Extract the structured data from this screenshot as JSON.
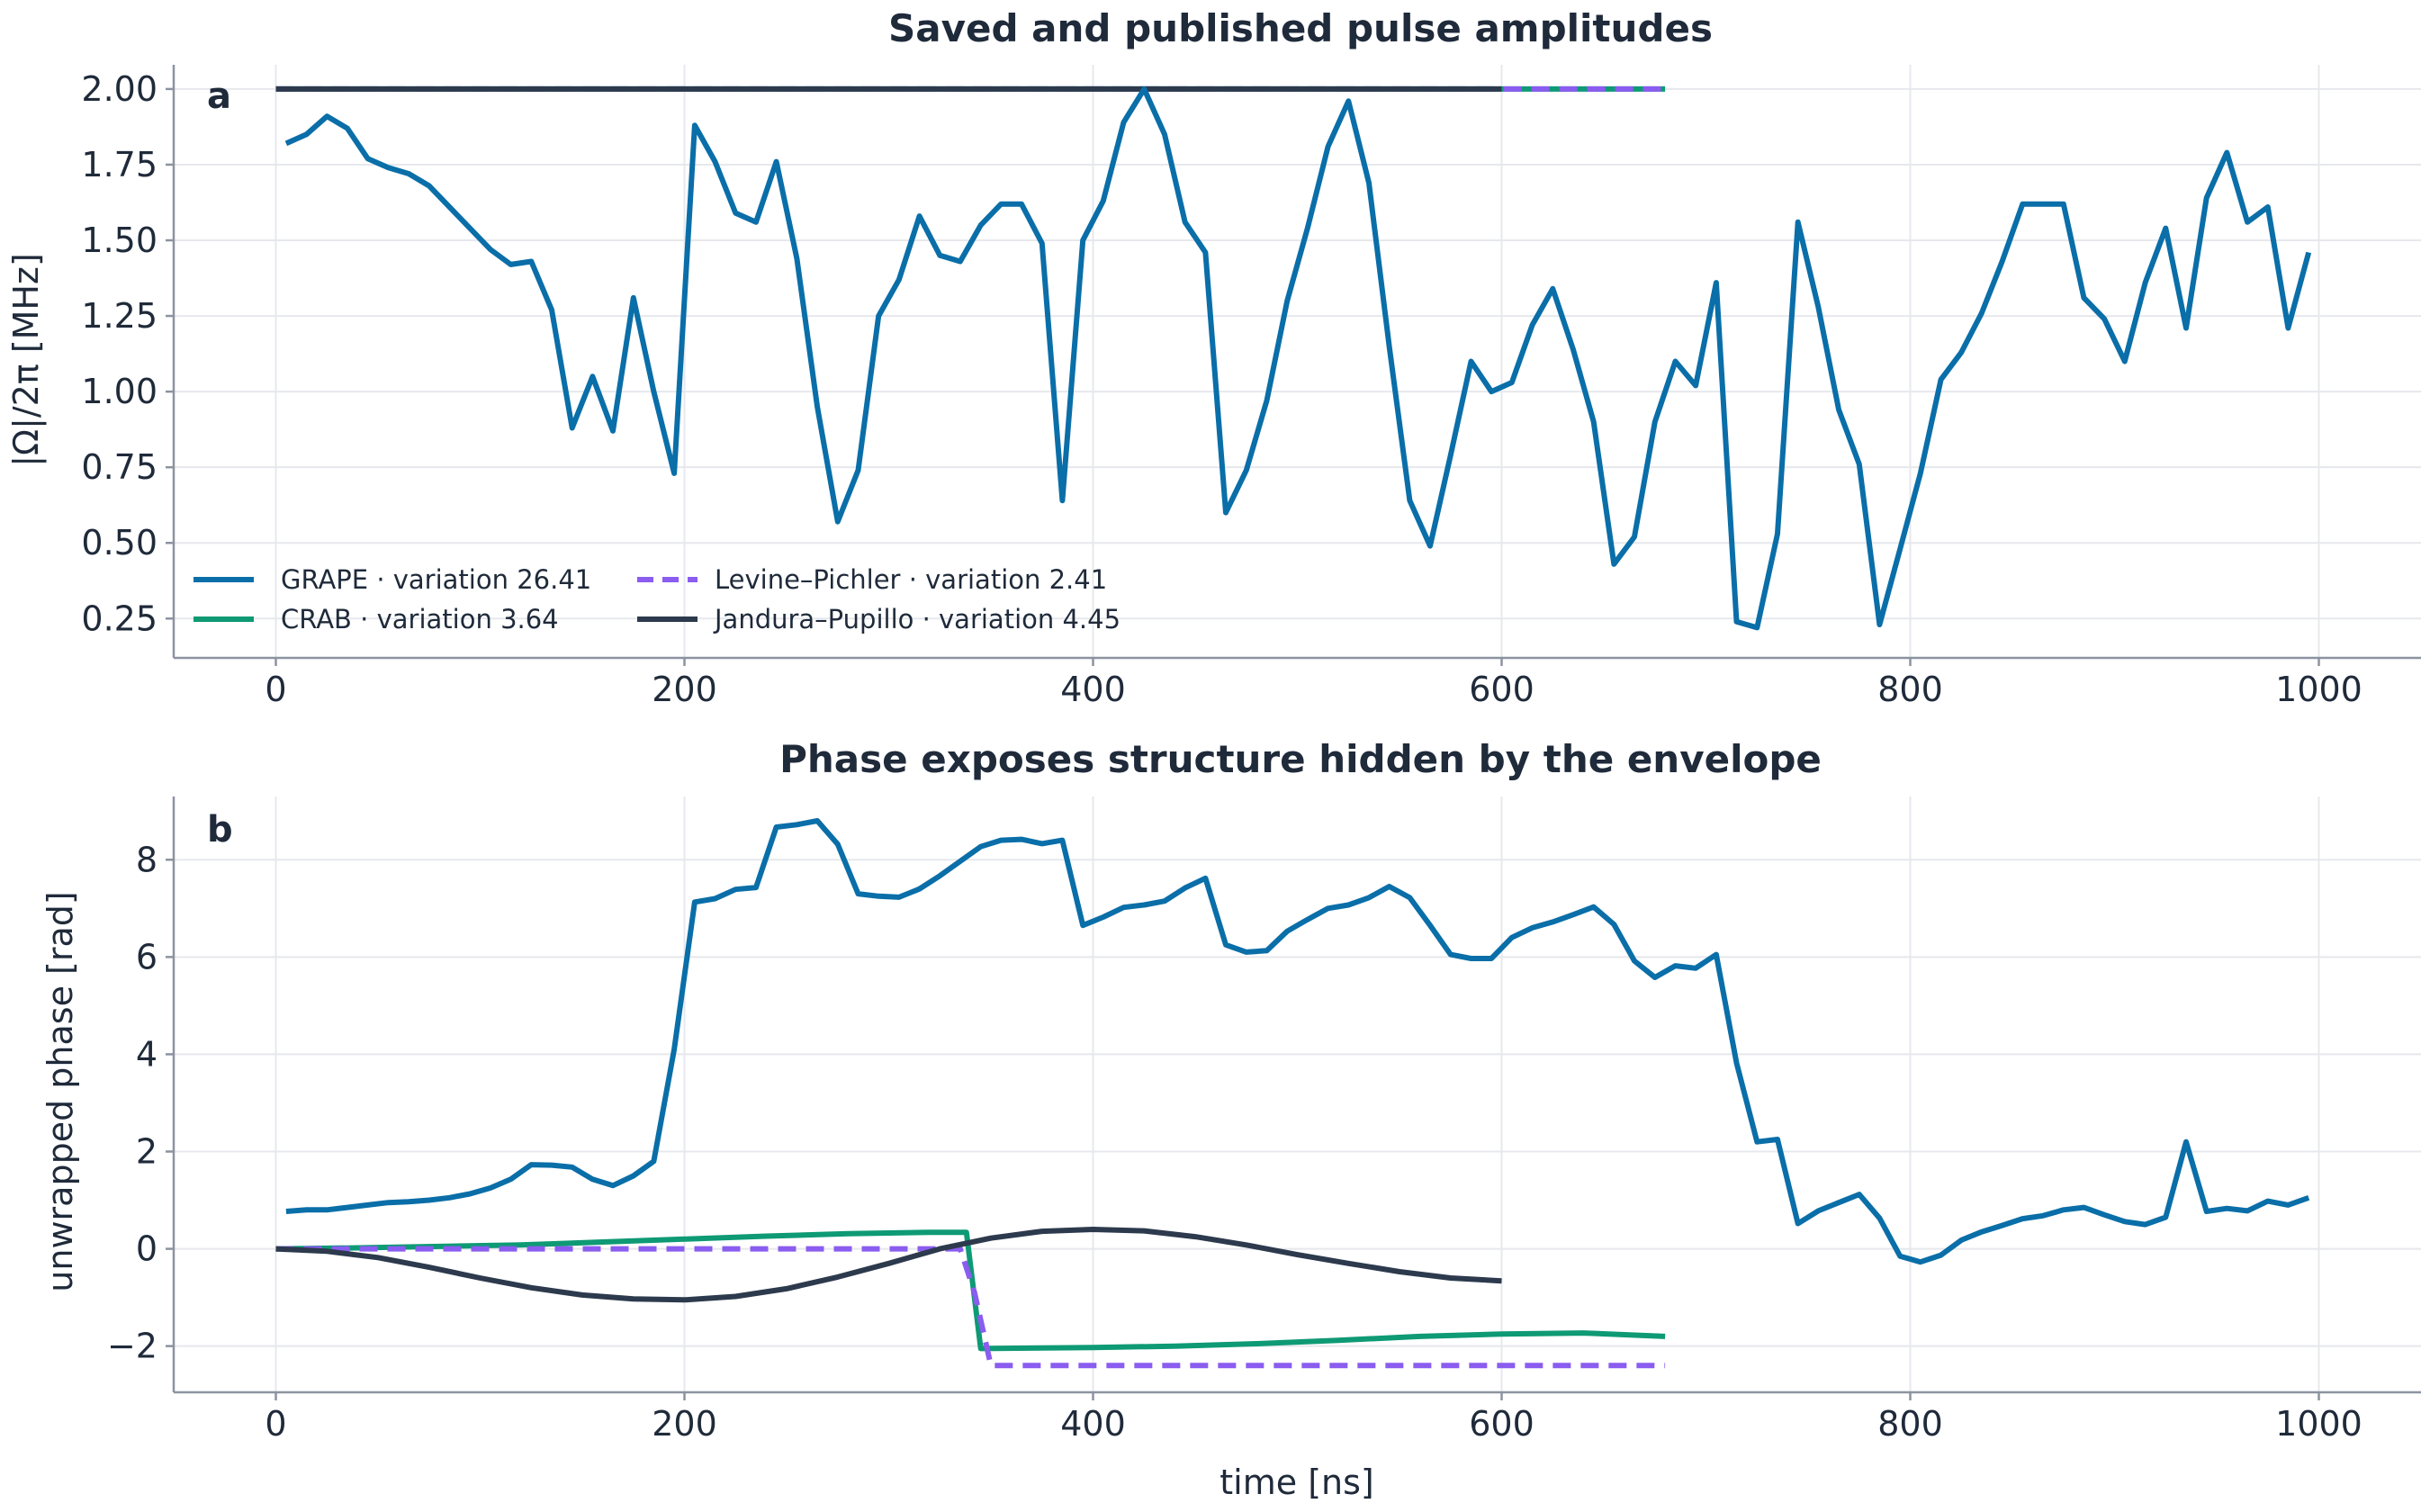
{
  "chart_data": [
    {
      "type": "line",
      "panel": "a",
      "title": "Saved and published pulse amplitudes",
      "xlabel": "",
      "ylabel": "|Ω|/2π [MHz]",
      "xlim": [
        -50,
        1050
      ],
      "ylim": [
        0.12,
        2.08
      ],
      "xticks": [
        0,
        200,
        400,
        600,
        800,
        1000
      ],
      "xtick_labels": [
        "0",
        "200",
        "400",
        "600",
        "800",
        "1000"
      ],
      "yticks": [
        0.25,
        0.5,
        0.75,
        1.0,
        1.25,
        1.5,
        1.75,
        2.0
      ],
      "ytick_labels": [
        "0.25",
        "0.50",
        "0.75",
        "1.00",
        "1.25",
        "1.50",
        "1.75",
        "2.00"
      ],
      "grid": true,
      "legend_position": "lower-left",
      "series": [
        {
          "name": "GRAPE · variation 26.41",
          "color": "#0a6ea8",
          "dash": "solid",
          "x": [
            5,
            15,
            25,
            35,
            45,
            55,
            65,
            75,
            85,
            95,
            105,
            115,
            125,
            135,
            145,
            155,
            165,
            175,
            185,
            195,
            205,
            215,
            225,
            235,
            245,
            255,
            265,
            275,
            285,
            295,
            305,
            315,
            325,
            335,
            345,
            355,
            365,
            375,
            385,
            395,
            405,
            415,
            425,
            435,
            445,
            455,
            465,
            475,
            485,
            495,
            505,
            515,
            525,
            535,
            545,
            555,
            565,
            575,
            585,
            595,
            605,
            615,
            625,
            635,
            645,
            655,
            665,
            675,
            685,
            695,
            705,
            715,
            725,
            735,
            745,
            755,
            765,
            775,
            785,
            795,
            805,
            815,
            825,
            835,
            845,
            855,
            865,
            875,
            885,
            895,
            905,
            915,
            925,
            935,
            945,
            955,
            965,
            975,
            985,
            995
          ],
          "y": [
            1.82,
            1.85,
            1.91,
            1.87,
            1.77,
            1.74,
            1.72,
            1.68,
            1.61,
            1.54,
            1.47,
            1.42,
            1.43,
            1.27,
            0.88,
            1.05,
            0.87,
            1.31,
            1.0,
            0.73,
            1.88,
            1.76,
            1.59,
            1.56,
            1.76,
            1.44,
            0.95,
            0.57,
            0.74,
            1.25,
            1.37,
            1.58,
            1.45,
            1.43,
            1.55,
            1.62,
            1.62,
            1.49,
            0.64,
            1.5,
            1.63,
            1.89,
            2.0,
            1.85,
            1.56,
            1.46,
            0.6,
            0.74,
            0.97,
            1.3,
            1.54,
            1.81,
            1.96,
            1.69,
            1.15,
            0.64,
            0.49,
            0.79,
            1.1,
            1.0,
            1.03,
            1.22,
            1.34,
            1.14,
            0.9,
            0.43,
            0.52,
            0.9,
            1.1,
            1.02,
            1.36,
            0.24,
            0.22,
            0.53,
            1.56,
            1.28,
            0.94,
            0.76,
            0.23,
            0.48,
            0.73,
            1.04,
            1.13,
            1.26,
            1.43,
            1.62,
            1.62,
            1.62,
            1.31,
            1.24,
            1.1,
            1.36,
            1.54,
            1.21,
            1.64,
            1.79,
            1.56,
            1.61,
            1.21,
            1.46
          ]
        },
        {
          "name": "CRAB · variation 3.64",
          "color": "#0e9a74",
          "dash": "solid",
          "x": [
            0,
            680
          ],
          "y": [
            2.0,
            2.0
          ]
        },
        {
          "name": "Levine–Pichler · variation 2.41",
          "color": "#8a5cf0",
          "dash": "dashed",
          "x": [
            0,
            680
          ],
          "y": [
            2.0,
            2.0
          ]
        },
        {
          "name": "Jandura–Pupillo · variation 4.45",
          "color": "#2d3a4d",
          "dash": "solid",
          "x": [
            0,
            600
          ],
          "y": [
            2.0,
            2.0
          ]
        }
      ]
    },
    {
      "type": "line",
      "panel": "b",
      "title": "Phase exposes structure hidden by the envelope",
      "xlabel": "time [ns]",
      "ylabel": "unwrapped phase [rad]",
      "xlim": [
        -50,
        1050
      ],
      "ylim": [
        -2.95,
        9.3
      ],
      "xticks": [
        0,
        200,
        400,
        600,
        800,
        1000
      ],
      "xtick_labels": [
        "0",
        "200",
        "400",
        "600",
        "800",
        "1000"
      ],
      "yticks": [
        -2,
        0,
        2,
        4,
        6,
        8
      ],
      "ytick_labels": [
        "−2",
        "0",
        "2",
        "4",
        "6",
        "8"
      ],
      "grid": true,
      "series": [
        {
          "name": "GRAPE · variation 26.41",
          "color": "#0a6ea8",
          "dash": "solid",
          "x": [
            5,
            15,
            25,
            35,
            45,
            55,
            65,
            75,
            85,
            95,
            105,
            115,
            125,
            135,
            145,
            155,
            165,
            175,
            185,
            195,
            205,
            215,
            225,
            235,
            245,
            255,
            265,
            275,
            285,
            295,
            305,
            315,
            325,
            335,
            345,
            355,
            365,
            375,
            385,
            395,
            405,
            415,
            425,
            435,
            445,
            455,
            465,
            475,
            485,
            495,
            505,
            515,
            525,
            535,
            545,
            555,
            565,
            575,
            585,
            595,
            605,
            615,
            625,
            635,
            645,
            655,
            665,
            675,
            685,
            695,
            705,
            715,
            725,
            735,
            745,
            755,
            765,
            775,
            785,
            795,
            805,
            815,
            825,
            835,
            845,
            855,
            865,
            875,
            885,
            895,
            905,
            915,
            925,
            935,
            945,
            955,
            965,
            975,
            985,
            995
          ],
          "y": [
            0.77,
            0.8,
            0.8,
            0.85,
            0.9,
            0.95,
            0.97,
            1.0,
            1.05,
            1.13,
            1.25,
            1.43,
            1.73,
            1.72,
            1.68,
            1.43,
            1.3,
            1.5,
            1.8,
            4.1,
            7.13,
            7.2,
            7.39,
            7.43,
            8.67,
            8.72,
            8.8,
            8.32,
            7.3,
            7.25,
            7.23,
            7.4,
            7.67,
            7.97,
            8.27,
            8.4,
            8.42,
            8.33,
            8.4,
            6.65,
            6.82,
            7.02,
            7.07,
            7.15,
            7.42,
            7.62,
            6.25,
            6.1,
            6.13,
            6.53,
            6.77,
            7.0,
            7.07,
            7.22,
            7.45,
            7.22,
            6.65,
            6.05,
            5.97,
            5.97,
            6.4,
            6.6,
            6.72,
            6.87,
            7.03,
            6.67,
            5.92,
            5.58,
            5.82,
            5.77,
            6.05,
            3.82,
            2.2,
            2.25,
            0.52,
            0.78,
            0.95,
            1.12,
            0.63,
            -0.15,
            -0.27,
            -0.13,
            0.18,
            0.35,
            0.48,
            0.62,
            0.68,
            0.8,
            0.85,
            0.7,
            0.56,
            0.5,
            0.65,
            2.2,
            0.77,
            0.83,
            0.78,
            0.98,
            0.9,
            1.05
          ]
        },
        {
          "name": "CRAB · variation 3.64",
          "color": "#0e9a74",
          "dash": "solid",
          "x": [
            0,
            40,
            80,
            120,
            160,
            200,
            240,
            280,
            320,
            338,
            345,
            400,
            440,
            480,
            520,
            560,
            600,
            640,
            680
          ],
          "y": [
            0.0,
            0.02,
            0.05,
            0.08,
            0.14,
            0.2,
            0.26,
            0.31,
            0.34,
            0.34,
            -2.05,
            -2.03,
            -2.0,
            -1.95,
            -1.88,
            -1.8,
            -1.75,
            -1.73,
            -1.8
          ]
        },
        {
          "name": "Levine–Pichler · variation 2.41",
          "color": "#8a5cf0",
          "dash": "dashed",
          "x": [
            0,
            100,
            200,
            300,
            335,
            342,
            350,
            500,
            680
          ],
          "y": [
            0.0,
            0.0,
            0.0,
            0.0,
            0.0,
            -0.9,
            -2.4,
            -2.4,
            -2.4
          ]
        },
        {
          "name": "Jandura–Pupillo · variation 4.45",
          "color": "#2d3a4d",
          "dash": "solid",
          "x": [
            0,
            25,
            50,
            75,
            100,
            125,
            150,
            175,
            200,
            225,
            250,
            275,
            300,
            325,
            350,
            375,
            400,
            425,
            450,
            475,
            500,
            525,
            550,
            575,
            600
          ],
          "y": [
            0.0,
            -0.05,
            -0.18,
            -0.38,
            -0.6,
            -0.8,
            -0.95,
            -1.03,
            -1.05,
            -0.98,
            -0.82,
            -0.58,
            -0.3,
            0.0,
            0.22,
            0.36,
            0.4,
            0.37,
            0.25,
            0.08,
            -0.12,
            -0.3,
            -0.47,
            -0.6,
            -0.66
          ]
        }
      ]
    }
  ]
}
